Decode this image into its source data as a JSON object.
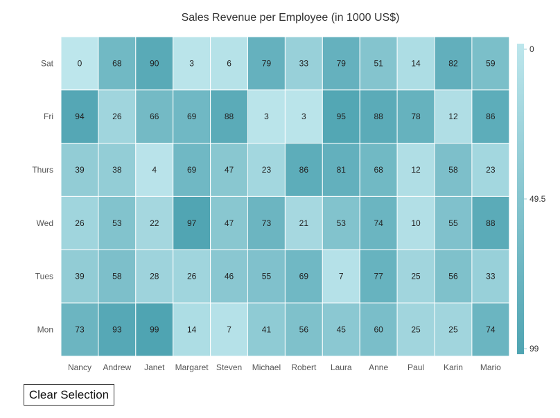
{
  "chart_data": {
    "type": "heatmap",
    "title": "Sales Revenue per Employee (in 1000 US$)",
    "x_categories": [
      "Nancy",
      "Andrew",
      "Janet",
      "Margaret",
      "Steven",
      "Michael",
      "Robert",
      "Laura",
      "Anne",
      "Paul",
      "Karin",
      "Mario"
    ],
    "y_categories": [
      "Sat",
      "Fri",
      "Thurs",
      "Wed",
      "Tues",
      "Mon"
    ],
    "values": [
      [
        0,
        68,
        90,
        3,
        6,
        79,
        33,
        79,
        51,
        14,
        82,
        59
      ],
      [
        94,
        26,
        66,
        69,
        88,
        3,
        3,
        95,
        88,
        78,
        12,
        86
      ],
      [
        39,
        38,
        4,
        69,
        47,
        23,
        86,
        81,
        68,
        12,
        58,
        23
      ],
      [
        26,
        53,
        22,
        97,
        47,
        73,
        21,
        53,
        74,
        10,
        55,
        88
      ],
      [
        39,
        58,
        28,
        26,
        46,
        55,
        69,
        7,
        77,
        25,
        56,
        33
      ],
      [
        73,
        93,
        99,
        14,
        7,
        41,
        56,
        45,
        60,
        25,
        25,
        74
      ]
    ],
    "color_scale": {
      "min": 0,
      "mid": 49.5,
      "max": 99,
      "min_color": "#bde6ec",
      "max_color": "#4fa4b2",
      "labels": [
        "0",
        "49.5",
        "99"
      ]
    }
  },
  "controls": {
    "clear_selection_label": "Clear Selection"
  }
}
